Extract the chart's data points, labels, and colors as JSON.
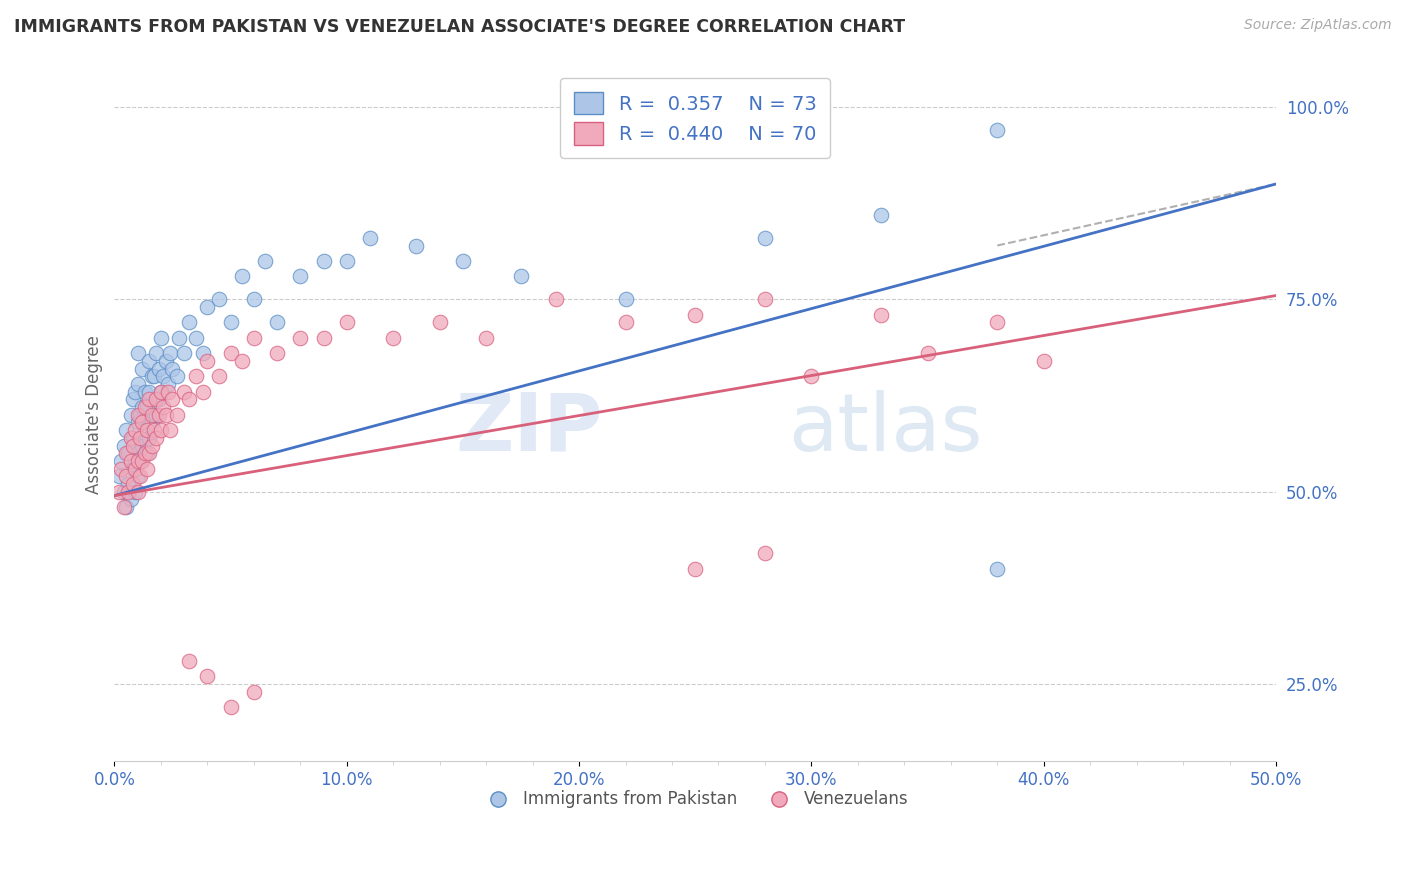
{
  "title": "IMMIGRANTS FROM PAKISTAN VS VENEZUELAN ASSOCIATE'S DEGREE CORRELATION CHART",
  "source_text": "Source: ZipAtlas.com",
  "ylabel": "Associate's Degree",
  "xlim": [
    0.0,
    0.5
  ],
  "ylim": [
    0.15,
    1.05
  ],
  "xtick_labels": [
    "0.0%",
    "",
    "",
    "",
    "",
    "10.0%",
    "",
    "",
    "",
    "",
    "20.0%",
    "",
    "",
    "",
    "",
    "30.0%",
    "",
    "",
    "",
    "",
    "40.0%",
    "",
    "",
    "",
    "",
    "50.0%"
  ],
  "xtick_vals": [
    0.0,
    0.02,
    0.04,
    0.06,
    0.08,
    0.1,
    0.12,
    0.14,
    0.16,
    0.18,
    0.2,
    0.22,
    0.24,
    0.26,
    0.28,
    0.3,
    0.32,
    0.34,
    0.36,
    0.38,
    0.4,
    0.42,
    0.44,
    0.46,
    0.48,
    0.5
  ],
  "ytick_labels": [
    "25.0%",
    "50.0%",
    "75.0%",
    "100.0%"
  ],
  "ytick_vals": [
    0.25,
    0.5,
    0.75,
    1.0
  ],
  "blue_R": 0.357,
  "blue_N": 73,
  "pink_R": 0.44,
  "pink_N": 70,
  "blue_color": "#adc6e8",
  "pink_color": "#f0aabb",
  "blue_edge_color": "#5b8ec4",
  "pink_edge_color": "#d96080",
  "blue_line_color": "#4472c4",
  "pink_line_color": "#d9607a",
  "watermark_zip": "ZIP",
  "watermark_atlas": "atlas",
  "background_color": "#ffffff",
  "grid_color": "#cccccc",
  "title_color": "#333333",
  "axis_label_color": "#666666",
  "tick_label_color": "#4472c4",
  "legend_label1": "Immigrants from Pakistan",
  "legend_label2": "Venezuelans",
  "blue_scatter_x": [
    0.002,
    0.003,
    0.004,
    0.004,
    0.005,
    0.005,
    0.006,
    0.006,
    0.007,
    0.007,
    0.008,
    0.008,
    0.008,
    0.009,
    0.009,
    0.009,
    0.01,
    0.01,
    0.01,
    0.01,
    0.01,
    0.011,
    0.011,
    0.012,
    0.012,
    0.012,
    0.013,
    0.013,
    0.014,
    0.014,
    0.015,
    0.015,
    0.015,
    0.016,
    0.016,
    0.017,
    0.017,
    0.018,
    0.018,
    0.019,
    0.019,
    0.02,
    0.02,
    0.021,
    0.022,
    0.023,
    0.024,
    0.025,
    0.027,
    0.028,
    0.03,
    0.032,
    0.035,
    0.038,
    0.04,
    0.045,
    0.05,
    0.055,
    0.06,
    0.065,
    0.07,
    0.08,
    0.09,
    0.1,
    0.11,
    0.13,
    0.15,
    0.175,
    0.22,
    0.28,
    0.33,
    0.38,
    0.38
  ],
  "blue_scatter_y": [
    0.52,
    0.54,
    0.5,
    0.56,
    0.48,
    0.58,
    0.51,
    0.55,
    0.49,
    0.6,
    0.53,
    0.57,
    0.62,
    0.5,
    0.56,
    0.63,
    0.52,
    0.55,
    0.59,
    0.64,
    0.68,
    0.54,
    0.6,
    0.56,
    0.61,
    0.66,
    0.58,
    0.63,
    0.55,
    0.61,
    0.57,
    0.63,
    0.67,
    0.59,
    0.65,
    0.6,
    0.65,
    0.6,
    0.68,
    0.62,
    0.66,
    0.63,
    0.7,
    0.65,
    0.67,
    0.64,
    0.68,
    0.66,
    0.65,
    0.7,
    0.68,
    0.72,
    0.7,
    0.68,
    0.74,
    0.75,
    0.72,
    0.78,
    0.75,
    0.8,
    0.72,
    0.78,
    0.8,
    0.8,
    0.83,
    0.82,
    0.8,
    0.78,
    0.75,
    0.83,
    0.86,
    0.97,
    0.4
  ],
  "pink_scatter_x": [
    0.002,
    0.003,
    0.004,
    0.005,
    0.005,
    0.006,
    0.007,
    0.007,
    0.008,
    0.008,
    0.009,
    0.009,
    0.01,
    0.01,
    0.01,
    0.011,
    0.011,
    0.012,
    0.012,
    0.013,
    0.013,
    0.014,
    0.014,
    0.015,
    0.015,
    0.016,
    0.016,
    0.017,
    0.018,
    0.018,
    0.019,
    0.02,
    0.02,
    0.021,
    0.022,
    0.023,
    0.024,
    0.025,
    0.027,
    0.03,
    0.032,
    0.035,
    0.038,
    0.04,
    0.045,
    0.05,
    0.055,
    0.06,
    0.07,
    0.08,
    0.09,
    0.1,
    0.12,
    0.14,
    0.16,
    0.19,
    0.22,
    0.25,
    0.28,
    0.3,
    0.33,
    0.35,
    0.38,
    0.4,
    0.25,
    0.28,
    0.032,
    0.04,
    0.05,
    0.06
  ],
  "pink_scatter_y": [
    0.5,
    0.53,
    0.48,
    0.52,
    0.55,
    0.5,
    0.54,
    0.57,
    0.51,
    0.56,
    0.53,
    0.58,
    0.5,
    0.54,
    0.6,
    0.52,
    0.57,
    0.54,
    0.59,
    0.55,
    0.61,
    0.53,
    0.58,
    0.55,
    0.62,
    0.56,
    0.6,
    0.58,
    0.57,
    0.62,
    0.6,
    0.58,
    0.63,
    0.61,
    0.6,
    0.63,
    0.58,
    0.62,
    0.6,
    0.63,
    0.62,
    0.65,
    0.63,
    0.67,
    0.65,
    0.68,
    0.67,
    0.7,
    0.68,
    0.7,
    0.7,
    0.72,
    0.7,
    0.72,
    0.7,
    0.75,
    0.72,
    0.73,
    0.75,
    0.65,
    0.73,
    0.68,
    0.72,
    0.67,
    0.4,
    0.42,
    0.28,
    0.26,
    0.22,
    0.24
  ]
}
